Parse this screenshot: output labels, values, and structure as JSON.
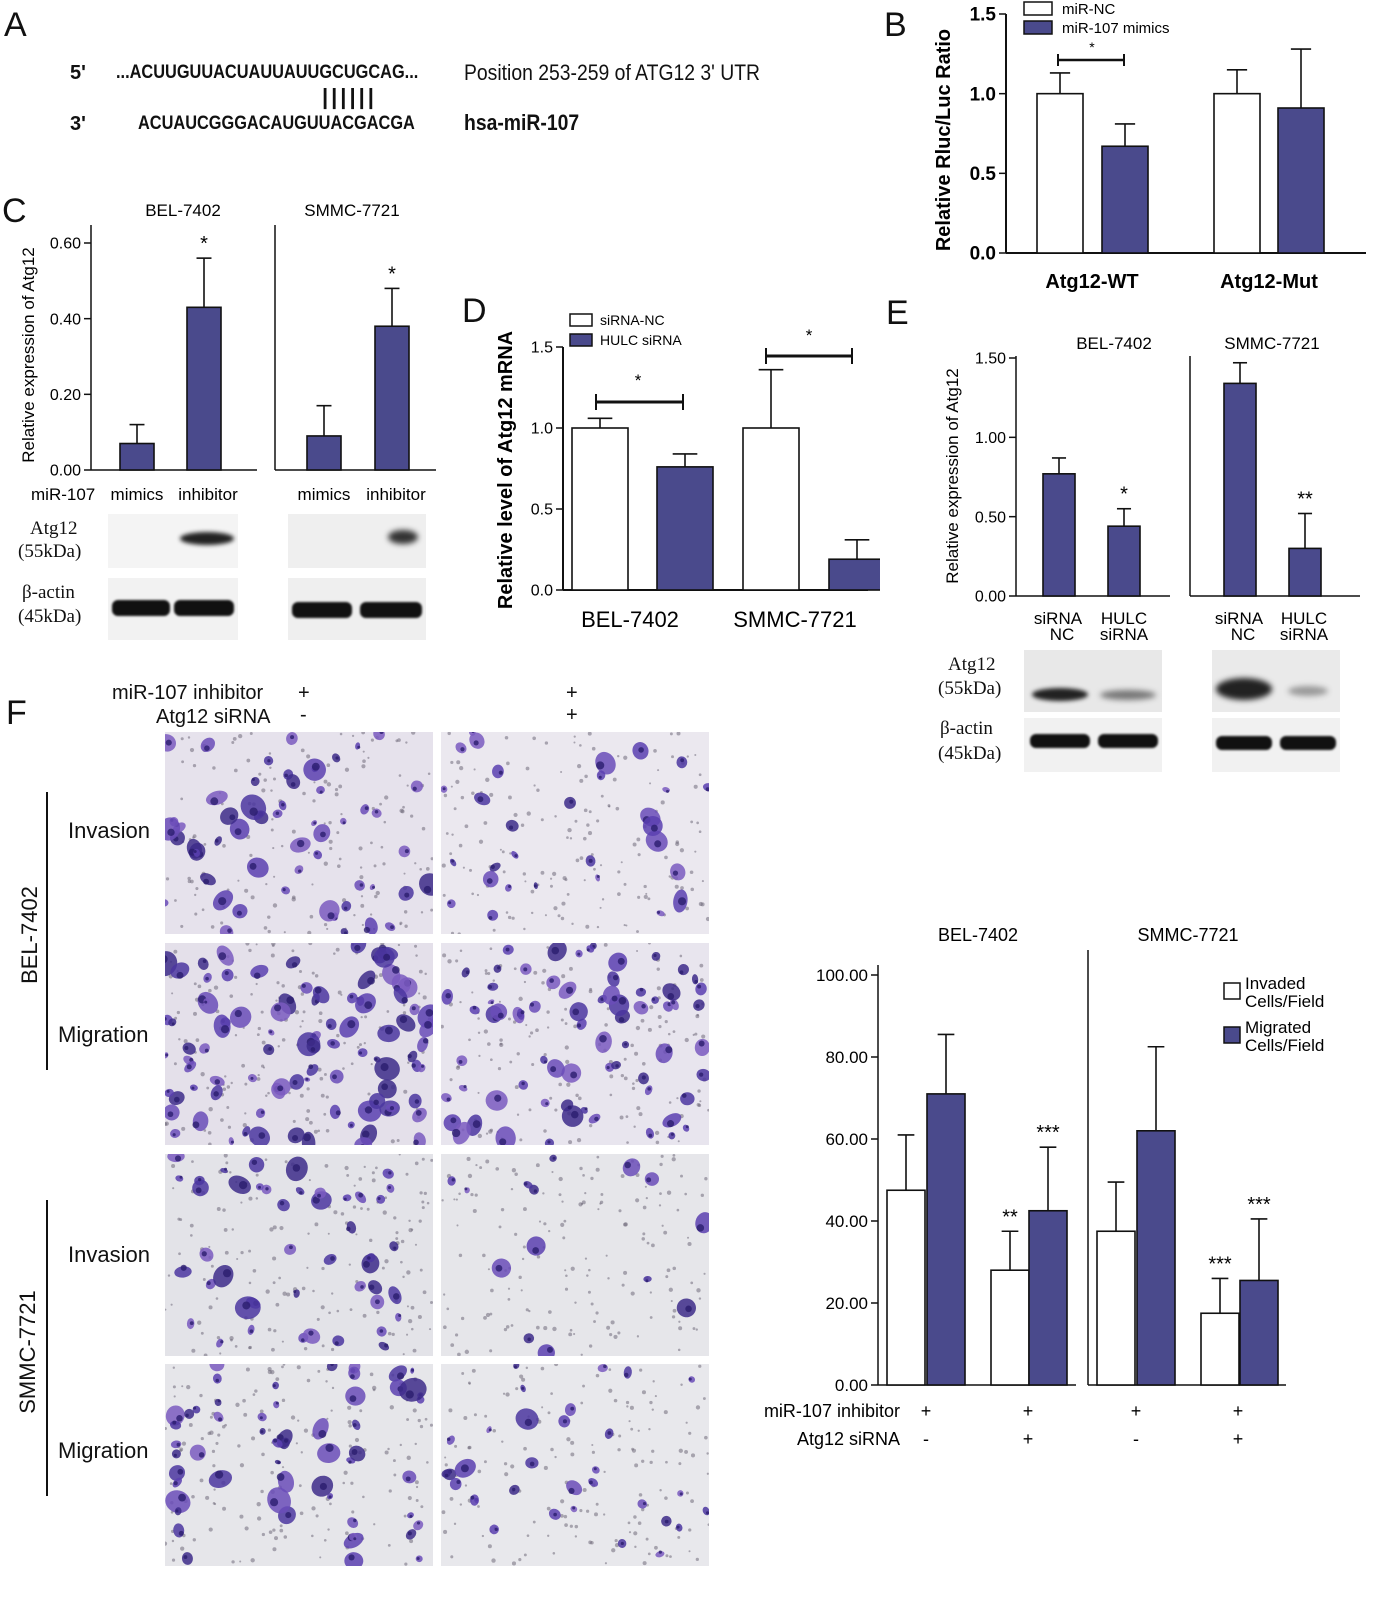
{
  "panelA": {
    "letter": "A",
    "line1_prime": "5'",
    "line1_seq": "...ACUUGUUACUAUUAUUGCUGCAG...",
    "line1_desc": "Position 253-259 of ATG12 3' UTR",
    "pairing": "||||||",
    "line2_prime": "3'",
    "line2_seq": "ACUAUCGGGACAUGUUACGACGA",
    "line2_desc": "hsa-miR-107"
  },
  "panelB": {
    "letter": "B",
    "chart_data": {
      "type": "bar",
      "categories": [
        "Atg12-WT",
        "Atg12-Mut"
      ],
      "series": [
        {
          "name": "miR-NC",
          "values": [
            1.0,
            1.0
          ],
          "errors": [
            0.13,
            0.15
          ],
          "color": "#ffffff"
        },
        {
          "name": "miR-107 mimics",
          "values": [
            0.67,
            0.91
          ],
          "errors": [
            0.14,
            0.37
          ],
          "color": "#4a4a8c"
        }
      ],
      "ylabel": "Relative Rluc/Luc Ratio",
      "ylim": [
        0,
        1.5
      ],
      "yticks": [
        "0.0",
        "0.5",
        "1.0",
        "1.5"
      ],
      "significance": [
        "*"
      ],
      "legend": "top"
    }
  },
  "panelC": {
    "letter": "C",
    "chart_data": {
      "type": "bar",
      "groups": [
        "BEL-7402",
        "SMMC-7721"
      ],
      "categories": [
        "mimics",
        "inhibitor"
      ],
      "xprefix": "miR-107",
      "values": [
        [
          0.07,
          0.43
        ],
        [
          0.09,
          0.38
        ]
      ],
      "errors": [
        [
          0.05,
          0.13
        ],
        [
          0.08,
          0.1
        ]
      ],
      "significance": [
        "*",
        "*"
      ],
      "ylabel": "Relative expression of Atg12",
      "ylim": [
        0,
        0.6
      ],
      "yticks": [
        "0.00",
        "0.20",
        "0.40",
        "0.60"
      ]
    },
    "blot_labels": [
      {
        "name": "Atg12",
        "size": "(55kDa)"
      },
      {
        "name": "β-actin",
        "size": "(45kDa)"
      }
    ]
  },
  "panelD": {
    "letter": "D",
    "chart_data": {
      "type": "bar",
      "categories": [
        "BEL-7402",
        "SMMC-7721"
      ],
      "series": [
        {
          "name": "siRNA-NC",
          "values": [
            1.0,
            1.0
          ],
          "errors": [
            0.06,
            0.36
          ],
          "color": "#ffffff"
        },
        {
          "name": "HULC siRNA",
          "values": [
            0.76,
            0.19
          ],
          "errors": [
            0.08,
            0.12
          ],
          "color": "#4a4a8c"
        }
      ],
      "ylabel": "Relative level of Atg12 mRNA",
      "ylim": [
        0,
        1.5
      ],
      "yticks": [
        "0.0",
        "0.5",
        "1.0",
        "1.5"
      ],
      "significance": [
        "*",
        "*"
      ]
    }
  },
  "panelE": {
    "letter": "E",
    "chart_data": {
      "type": "bar",
      "groups": [
        "BEL-7402",
        "SMMC-7721"
      ],
      "categories": [
        [
          "siRNA",
          "NC"
        ],
        [
          "HULC",
          "siRNA"
        ]
      ],
      "values": [
        [
          0.77,
          0.44
        ],
        [
          1.34,
          0.3
        ]
      ],
      "errors": [
        [
          0.1,
          0.11
        ],
        [
          0.13,
          0.22
        ]
      ],
      "significance": [
        "*",
        "**"
      ],
      "ylabel": "Relative expression of Atg12",
      "ylim": [
        0,
        1.5
      ],
      "yticks": [
        "0.00",
        "0.50",
        "1.00",
        "1.50"
      ]
    },
    "blot_labels": [
      {
        "name": "Atg12",
        "size": "(55kDa)"
      },
      {
        "name": "β-actin",
        "size": "(45kDa)"
      }
    ]
  },
  "panelF": {
    "letter": "F",
    "conditions": {
      "inhibitor_label": "miR-107 inhibitor",
      "sirna_label": "Atg12 siRNA",
      "col1_inhibitor": "+",
      "col1_sirna": "-",
      "col2_inhibitor": "+",
      "col2_sirna": "+"
    },
    "cell_lines": [
      "BEL-7402",
      "SMMC-7721"
    ],
    "row_labels": [
      "Invasion",
      "Migration",
      "Invasion",
      "Migration"
    ],
    "chart_data": {
      "type": "bar",
      "groups": [
        "BEL-7402",
        "SMMC-7721"
      ],
      "series": [
        {
          "name": "Invaded Cells/Field",
          "values": [
            [
              47.5,
              28.0
            ],
            [
              37.5,
              17.5
            ]
          ],
          "errors": [
            [
              13.5,
              9.5
            ],
            [
              12.0,
              8.5
            ]
          ],
          "color": "#ffffff"
        },
        {
          "name": "Migrated Cells/Field",
          "values": [
            [
              71.0,
              42.5
            ],
            [
              62.0,
              25.5
            ]
          ],
          "errors": [
            [
              14.5,
              15.5
            ],
            [
              20.5,
              15.0
            ]
          ],
          "color": "#4a4a8c"
        }
      ],
      "significance": [
        [
          "**",
          "***"
        ],
        [
          "***",
          "***"
        ]
      ],
      "ylim": [
        0,
        100
      ],
      "yticks": [
        "0.00",
        "20.00",
        "40.00",
        "60.00",
        "80.00",
        "100.00"
      ],
      "x_rows": [
        {
          "label": "miR-107 inhibitor",
          "marks": [
            "+",
            "+",
            "+",
            "+"
          ]
        },
        {
          "label": "Atg12 siRNA",
          "marks": [
            "-",
            "+",
            "-",
            "+"
          ]
        }
      ],
      "legend": [
        {
          "line1": "Invaded",
          "line2": "Cells/Field"
        },
        {
          "line1": "Migrated",
          "line2": "Cells/Field"
        }
      ]
    }
  },
  "colors": {
    "bar_fill": "#4a4a8c",
    "open_bar": "#ffffff",
    "axis": "#111111"
  }
}
